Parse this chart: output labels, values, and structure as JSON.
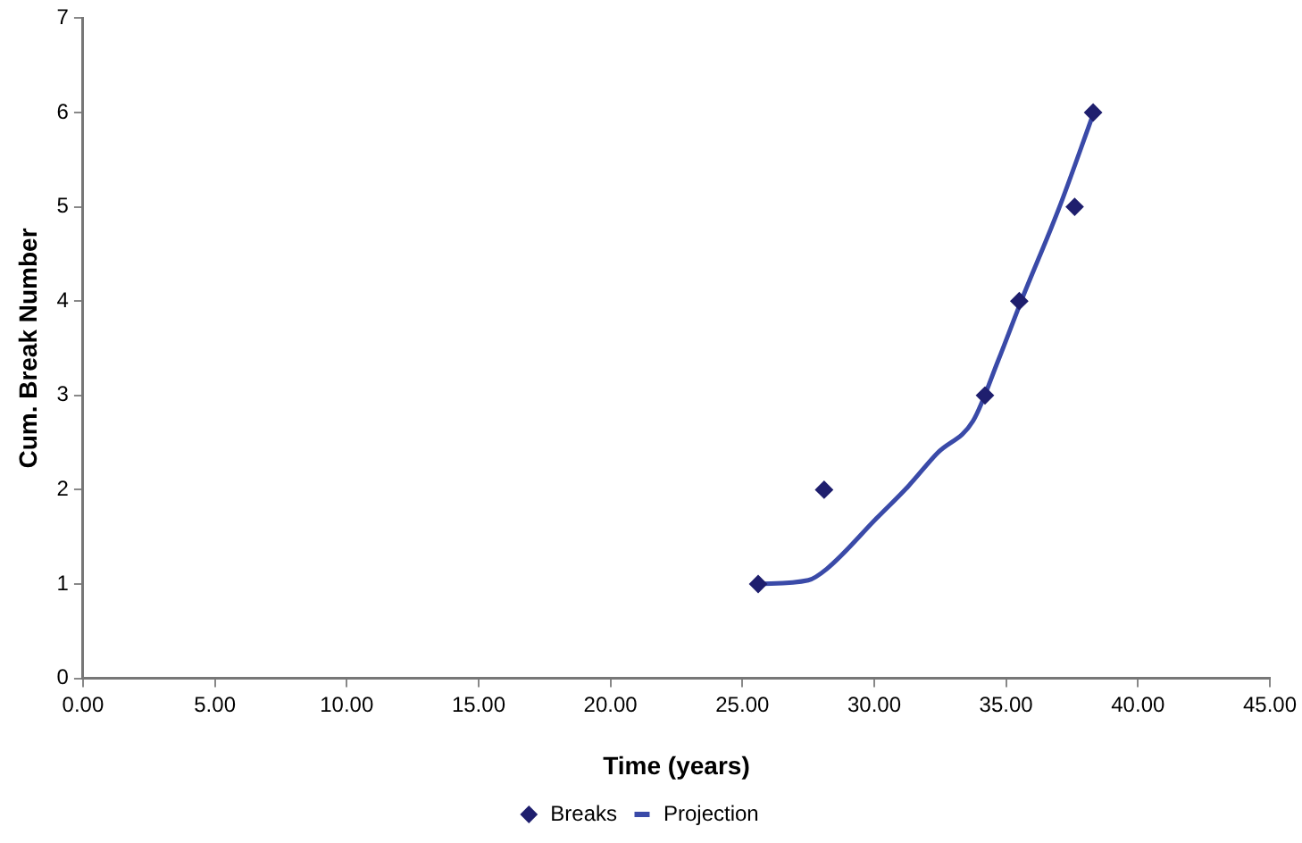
{
  "chart_data": {
    "type": "scatter",
    "xlabel": "Time (years)",
    "ylabel": "Cum. Break Number",
    "xlim": [
      0,
      45
    ],
    "xticks": [
      {
        "value": 0,
        "label": "0.00"
      },
      {
        "value": 5,
        "label": "5.00"
      },
      {
        "value": 10,
        "label": "10.00"
      },
      {
        "value": 15,
        "label": "15.00"
      },
      {
        "value": 20,
        "label": "20.00"
      },
      {
        "value": 25,
        "label": "25.00"
      },
      {
        "value": 30,
        "label": "30.00"
      },
      {
        "value": 35,
        "label": "35.00"
      },
      {
        "value": 40,
        "label": "40.00"
      },
      {
        "value": 45,
        "label": "45.00"
      }
    ],
    "ylim": [
      0,
      7
    ],
    "yticks": [
      0,
      1,
      2,
      3,
      4,
      5,
      6,
      7
    ],
    "grid": false,
    "legend": "bottom",
    "series": [
      {
        "name": "Breaks",
        "marker": "diamond",
        "color": "#1f1f6e",
        "x": [
          25.6,
          28.1,
          34.2,
          35.5,
          37.6,
          38.3
        ],
        "values": [
          1,
          2,
          3,
          4,
          5,
          6
        ]
      },
      {
        "name": "Projection",
        "type": "line",
        "marker": "none",
        "line_style": "solid",
        "color": "#3a4aa8",
        "x": [
          25.6,
          27.5,
          28.2,
          30.1,
          31.3,
          32.4,
          33.75,
          34.7,
          35.6,
          37.0,
          38.3
        ],
        "values": [
          1.0,
          1.04,
          1.16,
          1.7,
          2.04,
          2.39,
          2.73,
          3.37,
          4.02,
          4.98,
          5.98
        ]
      }
    ]
  }
}
